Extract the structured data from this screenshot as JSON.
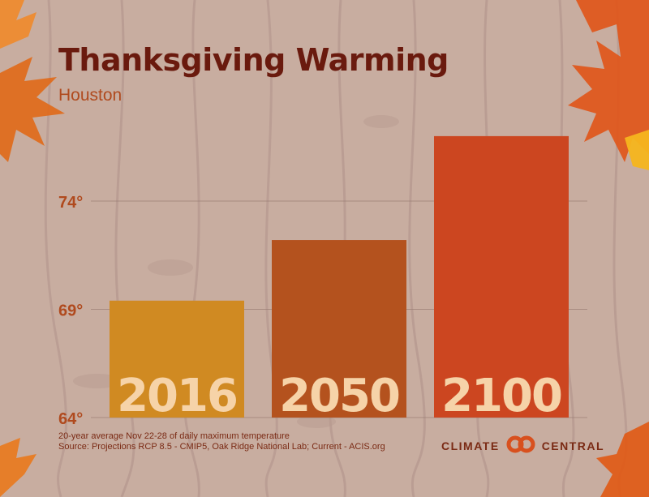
{
  "header": {
    "title": "Thanksgiving Warming",
    "subtitle": "Houston"
  },
  "footer": {
    "note": "20-year average Nov 22-28 of daily maximum temperature",
    "source": "Source: Projections RCP 8.5 - CMIP5, Oak Ridge National Lab; Current - ACIS.org",
    "brand_left": "CLIMATE",
    "brand_right": "CENTRAL"
  },
  "icons": {
    "brand_logo": "interlocking-circles-icon",
    "leaves": "maple-leaf-icon"
  },
  "colors": {
    "background": "#c8ada0",
    "title": "#6a1a0e",
    "accent": "#b04a1e",
    "bar_2016": "#d08a22",
    "bar_2050": "#b4521e",
    "bar_2100": "#cc4620",
    "bar_label": "#f6d3a8"
  },
  "chart_data": {
    "type": "bar",
    "title": "Thanksgiving Warming",
    "subtitle": "Houston",
    "categories": [
      "2016",
      "2050",
      "2100"
    ],
    "values": [
      69.4,
      72.2,
      77.0
    ],
    "ylim": [
      64,
      78
    ],
    "yticks": [
      64,
      69,
      74
    ],
    "ytick_labels": [
      "64°",
      "69°",
      "74°"
    ],
    "grid": true,
    "legend": "none",
    "xlabel": "",
    "ylabel": ""
  }
}
